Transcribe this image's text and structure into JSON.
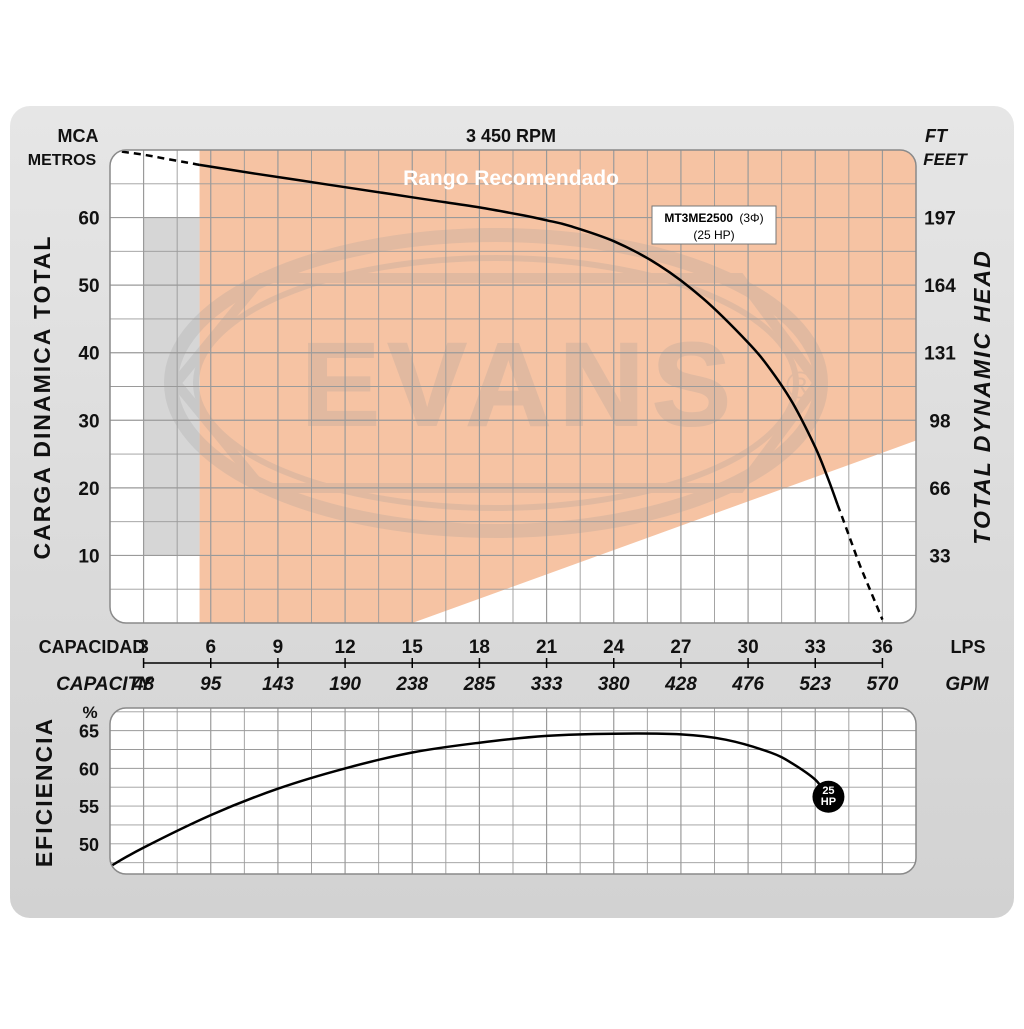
{
  "chart_data": [
    {
      "type": "line",
      "title": "3 450 RPM",
      "ylabel_left": "CARGA DINAMICA TOTAL",
      "ylabel_right": "TOTAL DYNAMIC HEAD",
      "y_left_unit_1": "MCA",
      "y_left_unit_2": "METROS",
      "y_right_unit_1": "FT",
      "y_right_unit_2": "FEET",
      "y_left_ticks": [
        "10",
        "20",
        "30",
        "40",
        "50",
        "60"
      ],
      "y_right_ticks": [
        "33",
        "66",
        "98",
        "131",
        "164",
        "197"
      ],
      "xlim": [
        1.5,
        37.5
      ],
      "ylim": [
        0,
        70
      ],
      "recommended_range_label": "Rango Recomendado",
      "recommended_range": [
        5.5,
        37.5
      ],
      "series": [
        {
          "name": "MT3ME2500",
          "name_suffix": "(3Φ)",
          "sub": "(25 HP)",
          "x": [
            1.5,
            3,
            4,
            5,
            5.5,
            8,
            10,
            12,
            14,
            16,
            18,
            20,
            21,
            22,
            24,
            26,
            28,
            30,
            31,
            32,
            33,
            33.5,
            34,
            34.5,
            35,
            35.5,
            36
          ],
          "y": [
            70,
            69.3,
            68.7,
            68.1,
            67.8,
            66.5,
            65.5,
            64.5,
            63.5,
            62.5,
            61.5,
            60.3,
            59.6,
            58.8,
            56.5,
            53.0,
            48.0,
            41.5,
            37.5,
            32.5,
            26.0,
            22.0,
            17.5,
            13.0,
            8.5,
            4.5,
            0.5
          ]
        }
      ]
    },
    {
      "type": "line",
      "ylabel": "EFICIENCIA",
      "unit": "%",
      "y_ticks": [
        "50",
        "55",
        "60",
        "65"
      ],
      "ylim": [
        46,
        68
      ],
      "series": [
        {
          "name": "25 HP",
          "marker_top": "25",
          "marker_bottom": "HP",
          "x": [
            1.5,
            3,
            6,
            9,
            12,
            15,
            18,
            21,
            24,
            27,
            29,
            31,
            32,
            33,
            33.5
          ],
          "y": [
            47.0,
            49.5,
            53.8,
            57.3,
            60.0,
            62.1,
            63.4,
            64.3,
            64.6,
            64.5,
            63.8,
            62.1,
            60.6,
            58.5,
            56.5
          ]
        }
      ]
    }
  ],
  "x_axis": {
    "label": "CAPACIDAD",
    "label_en": "CAPACITY",
    "unit": "LPS",
    "unit_en": "GPM",
    "lps_ticks": [
      "3",
      "6",
      "9",
      "12",
      "15",
      "18",
      "21",
      "24",
      "27",
      "30",
      "33",
      "36"
    ],
    "gpm_ticks": [
      "48",
      "95",
      "143",
      "190",
      "238",
      "285",
      "333",
      "380",
      "428",
      "476",
      "523",
      "570"
    ]
  },
  "watermark": {
    "text": "EVANS",
    "mark": "®"
  },
  "colors": {
    "panel_bg": "#dcdcdc",
    "grid": "#9a9a9a",
    "recommended": "#f6c3a3",
    "recommended_label": "#ffffff",
    "lowflow_shade": "#d6d6d6",
    "curve": "#000000"
  }
}
